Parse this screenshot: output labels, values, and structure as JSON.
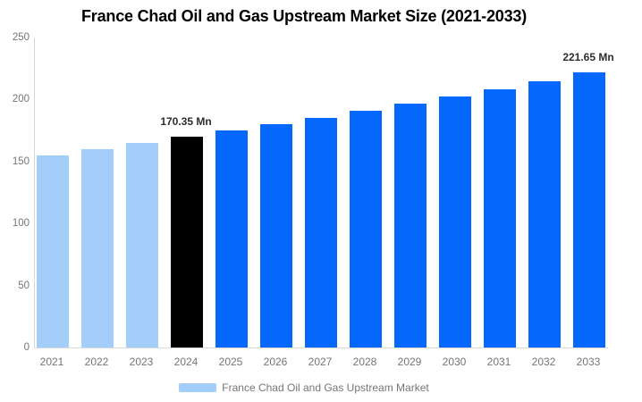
{
  "title": "France Chad Oil and Gas Upstream Market Size (2021-2033)",
  "legend": {
    "label": "France Chad Oil and Gas Upstream Market",
    "swatch_color": "#A3CEFA"
  },
  "colors": {
    "historical_bar": "#A3CEFA",
    "base_year_bar": "#000000",
    "forecast_bar": "#0568FD",
    "axis_text": "#757575",
    "data_label_text": "#2d2d2d",
    "axis_line": "#d9d9d9",
    "title_text": "#000000",
    "background": "#ffffff"
  },
  "chart_data": {
    "type": "bar",
    "title": "France Chad Oil and Gas Upstream Market Size (2021-2033)",
    "xlabel": "",
    "ylabel": "",
    "unit": "Mn",
    "ylim": [
      0,
      250
    ],
    "yticks": [
      0,
      50,
      100,
      150,
      200,
      250
    ],
    "grid": false,
    "legend_position": "bottom",
    "categories": [
      "2021",
      "2022",
      "2023",
      "2024",
      "2025",
      "2026",
      "2027",
      "2028",
      "2029",
      "2030",
      "2031",
      "2032",
      "2033"
    ],
    "series": [
      {
        "name": "France Chad Oil and Gas Upstream Market",
        "values": [
          155,
          160,
          165,
          170.35,
          175,
          180,
          185.3,
          190.8,
          196.5,
          202.3,
          208.3,
          214.6,
          221.65
        ]
      }
    ],
    "bar_colors": [
      "#A3CEFA",
      "#A3CEFA",
      "#A3CEFA",
      "#000000",
      "#0568FD",
      "#0568FD",
      "#0568FD",
      "#0568FD",
      "#0568FD",
      "#0568FD",
      "#0568FD",
      "#0568FD",
      "#0568FD"
    ],
    "data_labels": [
      {
        "index": 3,
        "text": "170.35 Mn"
      },
      {
        "index": 12,
        "text": "221.65 Mn"
      }
    ]
  }
}
